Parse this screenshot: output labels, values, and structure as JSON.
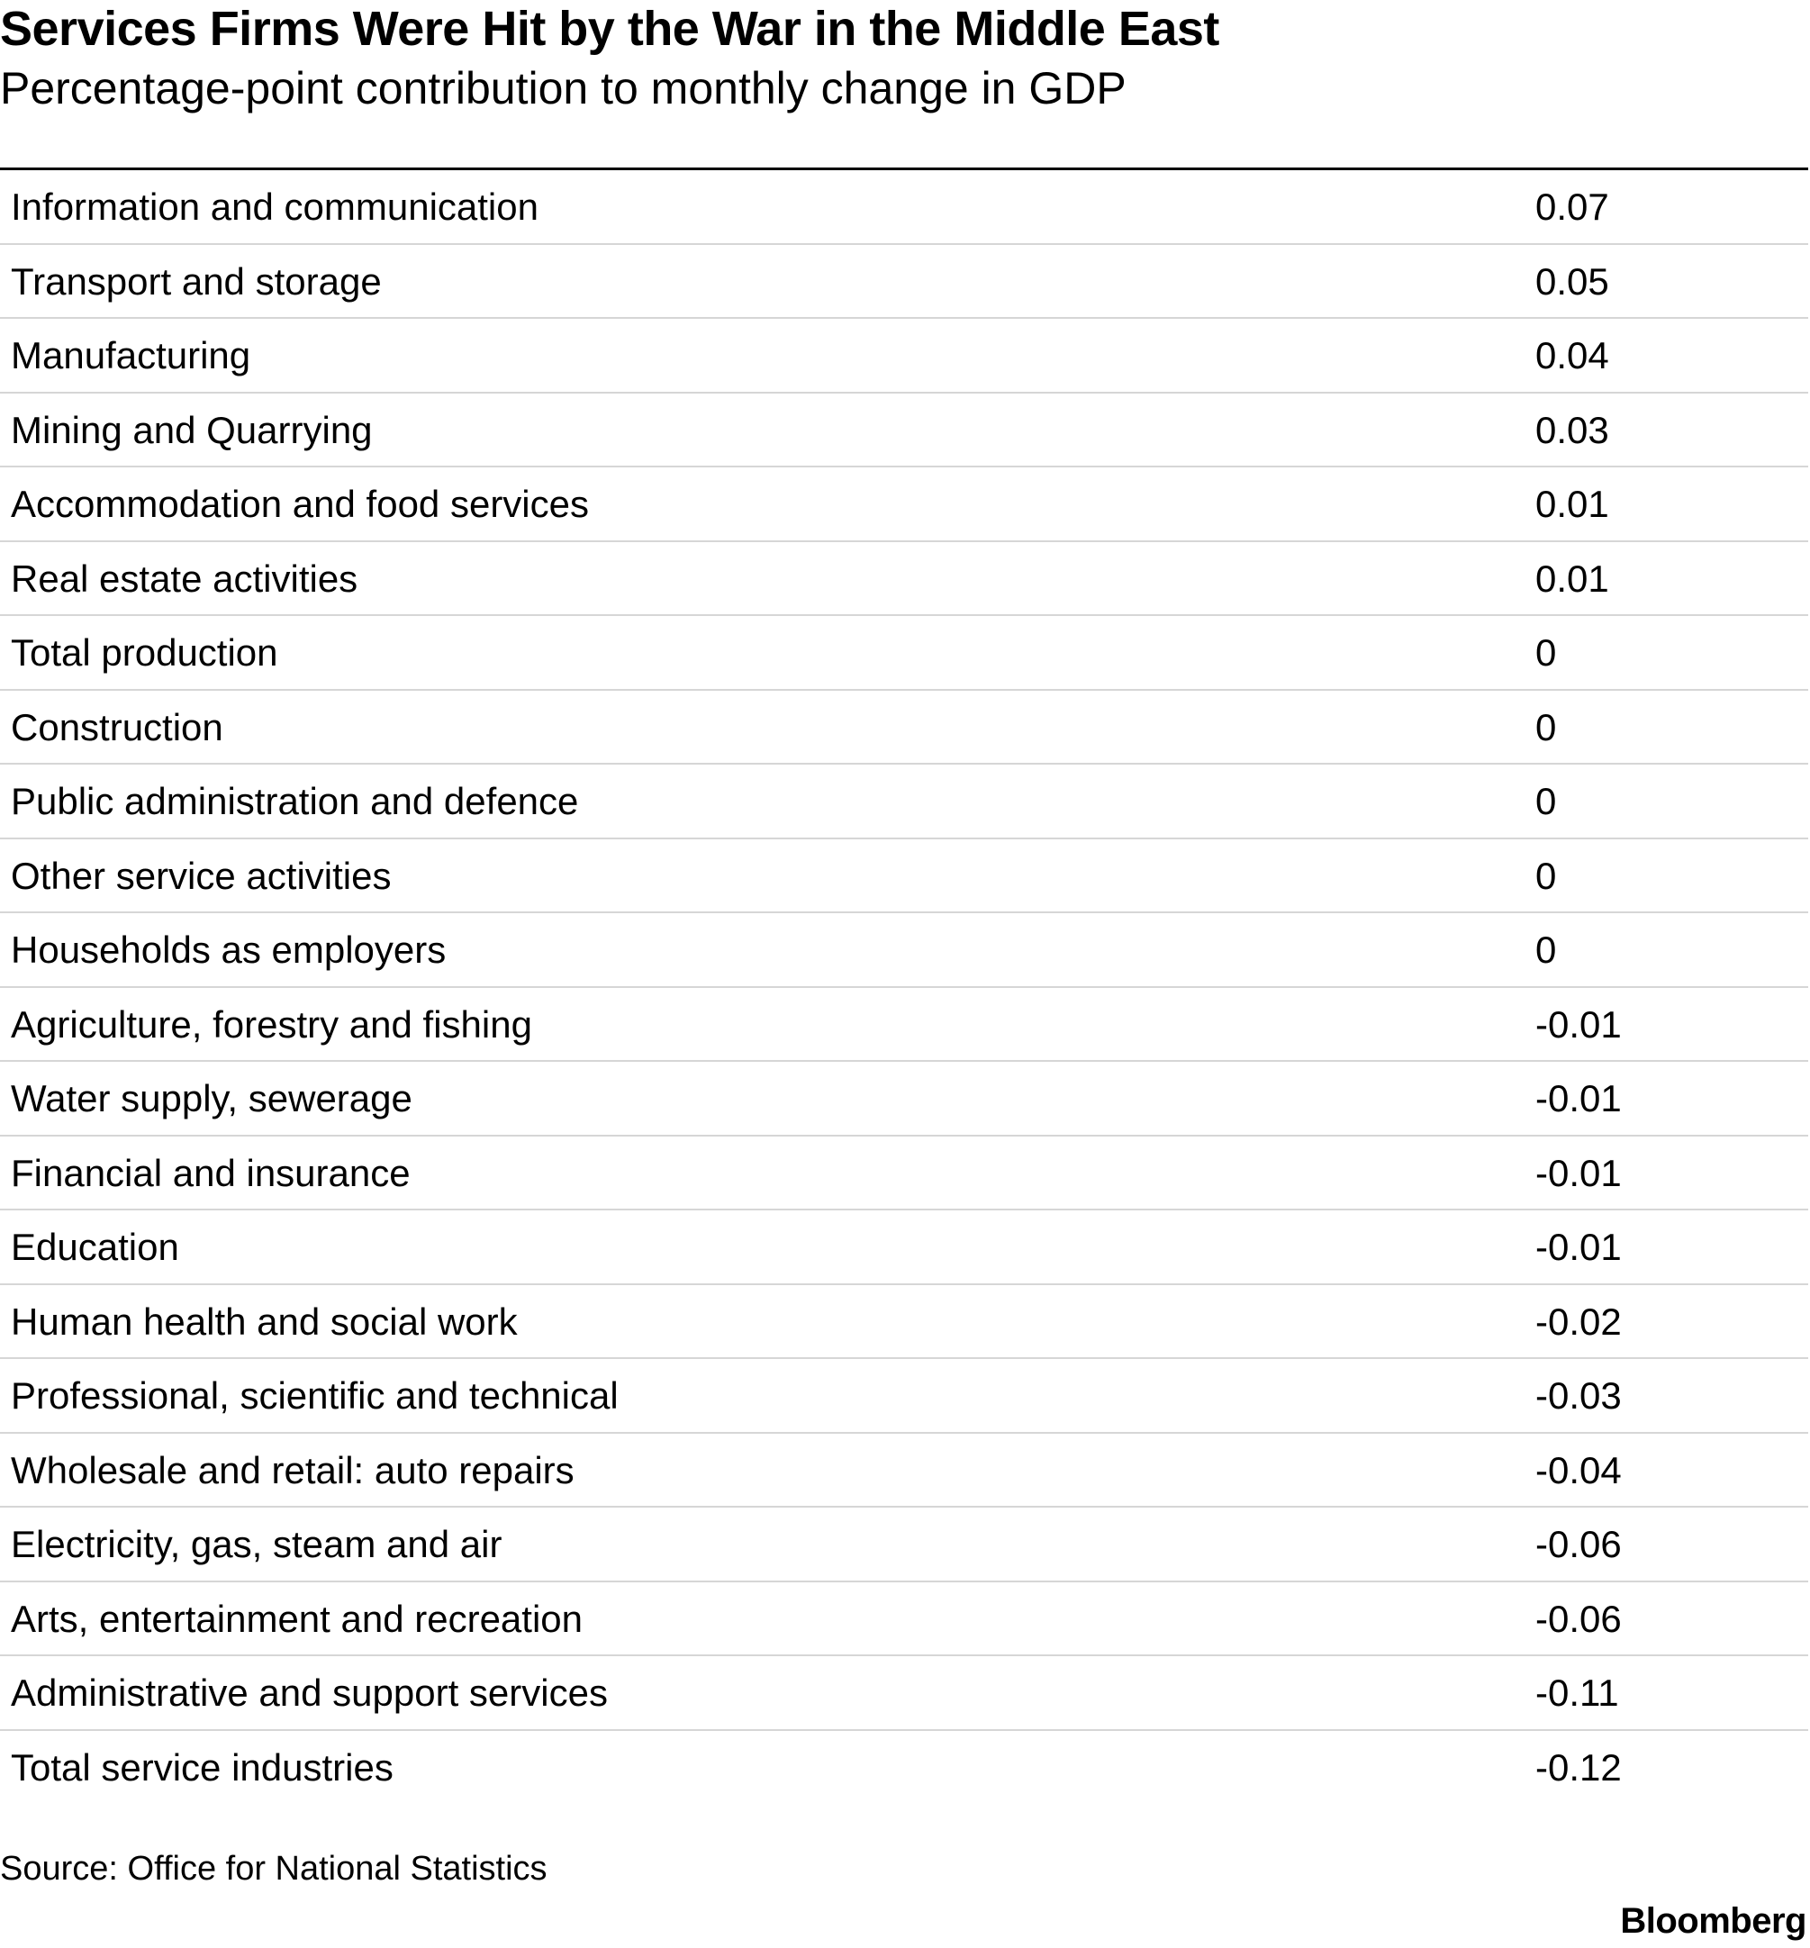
{
  "chart_data": {
    "type": "table",
    "title": "Services Firms Were Hit by the War in the Middle East",
    "subtitle": "Percentage-point contribution to monthly change in GDP",
    "rows": [
      {
        "label": "Information and communication",
        "value": "0.07"
      },
      {
        "label": "Transport and storage",
        "value": "0.05"
      },
      {
        "label": "Manufacturing",
        "value": "0.04"
      },
      {
        "label": "Mining and Quarrying",
        "value": "0.03"
      },
      {
        "label": "Accommodation and food services",
        "value": "0.01"
      },
      {
        "label": "Real estate activities",
        "value": "0.01"
      },
      {
        "label": "Total production",
        "value": "0"
      },
      {
        "label": "Construction",
        "value": "0"
      },
      {
        "label": "Public administration and defence",
        "value": "0"
      },
      {
        "label": "Other service activities",
        "value": "0"
      },
      {
        "label": "Households as employers",
        "value": "0"
      },
      {
        "label": "Agriculture, forestry and fishing",
        "value": "-0.01"
      },
      {
        "label": "Water supply, sewerage",
        "value": "-0.01"
      },
      {
        "label": "Financial and insurance",
        "value": "-0.01"
      },
      {
        "label": "Education",
        "value": "-0.01"
      },
      {
        "label": "Human health and social work",
        "value": "-0.02"
      },
      {
        "label": "Professional, scientific and technical",
        "value": "-0.03"
      },
      {
        "label": "Wholesale and retail: auto repairs",
        "value": "-0.04"
      },
      {
        "label": "Electricity, gas, steam and air",
        "value": "-0.06"
      },
      {
        "label": "Arts, entertainment and recreation",
        "value": "-0.06"
      },
      {
        "label": "Administrative and support services",
        "value": "-0.11"
      },
      {
        "label": "Total service industries",
        "value": "-0.12"
      }
    ],
    "source": "Source: Office for National Statistics",
    "brand": "Bloomberg"
  }
}
